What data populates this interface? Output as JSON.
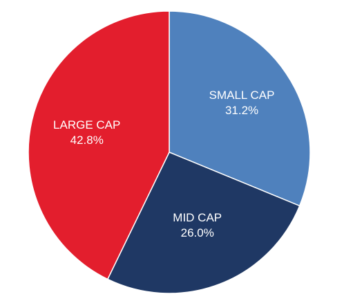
{
  "chart_data": {
    "type": "pie",
    "title": "",
    "slices": [
      {
        "label": "SMALL CAP",
        "value": 31.2,
        "value_label": "31.2%",
        "color": "#4f81bd"
      },
      {
        "label": "MID CAP",
        "value": 26.0,
        "value_label": "26.0%",
        "color": "#1f3864"
      },
      {
        "label": "LARGE CAP",
        "value": 42.8,
        "value_label": "42.8%",
        "color": "#e31e2d"
      }
    ],
    "start_angle": "12 o'clock",
    "direction": "clockwise",
    "legend": "none (labels inside slices)"
  }
}
